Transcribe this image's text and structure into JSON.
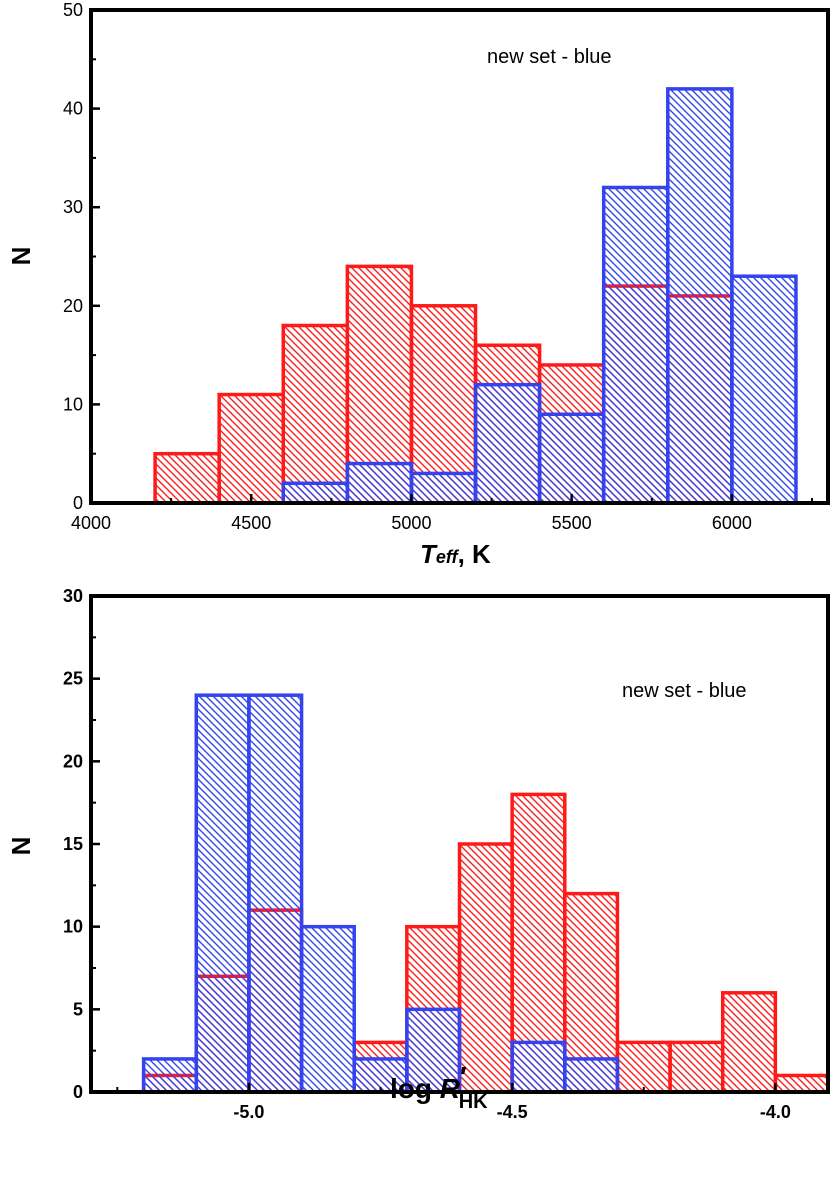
{
  "colors": {
    "red": "#ff1a1a",
    "blue": "#3344ee",
    "axis": "#000000"
  },
  "chart_data": [
    {
      "type": "bar",
      "subtype": "overlapping-histogram",
      "annotation": "new set - blue",
      "xlabel": {
        "main": "T",
        "sub": "eff",
        "unit": ", K"
      },
      "ylabel": "N",
      "xlim": [
        4000,
        6300
      ],
      "ylim": [
        0,
        50
      ],
      "xticks": [
        4000,
        4500,
        5000,
        5500,
        6000
      ],
      "yticks": [
        0,
        10,
        20,
        30,
        40,
        50
      ],
      "grid": false,
      "series": [
        {
          "color": "red",
          "bins": [
            {
              "x0": 4200,
              "x1": 4400,
              "n": 5
            },
            {
              "x0": 4400,
              "x1": 4600,
              "n": 11
            },
            {
              "x0": 4600,
              "x1": 4800,
              "n": 18
            },
            {
              "x0": 4800,
              "x1": 5000,
              "n": 24
            },
            {
              "x0": 5000,
              "x1": 5200,
              "n": 20
            },
            {
              "x0": 5200,
              "x1": 5400,
              "n": 16
            },
            {
              "x0": 5400,
              "x1": 5600,
              "n": 14
            },
            {
              "x0": 5600,
              "x1": 5800,
              "n": 22
            },
            {
              "x0": 5800,
              "x1": 6000,
              "n": 21
            }
          ]
        },
        {
          "color": "blue",
          "bins": [
            {
              "x0": 4600,
              "x1": 4800,
              "n": 2
            },
            {
              "x0": 4800,
              "x1": 5000,
              "n": 4
            },
            {
              "x0": 5000,
              "x1": 5200,
              "n": 3
            },
            {
              "x0": 5200,
              "x1": 5400,
              "n": 12
            },
            {
              "x0": 5400,
              "x1": 5600,
              "n": 9
            },
            {
              "x0": 5600,
              "x1": 5800,
              "n": 32
            },
            {
              "x0": 5800,
              "x1": 6000,
              "n": 42
            },
            {
              "x0": 6000,
              "x1": 6200,
              "n": 23
            }
          ]
        }
      ]
    },
    {
      "type": "bar",
      "subtype": "overlapping-histogram",
      "annotation": "new set - blue",
      "xlabel": {
        "main": "log R",
        "sup": "′",
        "sub": "HK"
      },
      "ylabel": "N",
      "xlim": [
        -5.3,
        -3.9
      ],
      "ylim": [
        0,
        30
      ],
      "xticks": [
        "-5.0",
        "-4.5",
        "-4.0"
      ],
      "yticks": [
        0,
        5,
        10,
        15,
        20,
        25,
        30
      ],
      "grid": false,
      "series": [
        {
          "color": "red",
          "bins": [
            {
              "x0": -5.2,
              "x1": -5.1,
              "n": 1
            },
            {
              "x0": -5.1,
              "x1": -5.0,
              "n": 7
            },
            {
              "x0": -5.0,
              "x1": -4.9,
              "n": 11
            },
            {
              "x0": -4.8,
              "x1": -4.7,
              "n": 3
            },
            {
              "x0": -4.7,
              "x1": -4.6,
              "n": 10
            },
            {
              "x0": -4.6,
              "x1": -4.5,
              "n": 15
            },
            {
              "x0": -4.5,
              "x1": -4.4,
              "n": 18
            },
            {
              "x0": -4.4,
              "x1": -4.3,
              "n": 12
            },
            {
              "x0": -4.3,
              "x1": -4.2,
              "n": 3
            },
            {
              "x0": -4.2,
              "x1": -4.1,
              "n": 3
            },
            {
              "x0": -4.1,
              "x1": -4.0,
              "n": 6
            },
            {
              "x0": -4.0,
              "x1": -3.9,
              "n": 1
            }
          ]
        },
        {
          "color": "blue",
          "bins": [
            {
              "x0": -5.2,
              "x1": -5.1,
              "n": 2
            },
            {
              "x0": -5.1,
              "x1": -5.0,
              "n": 24
            },
            {
              "x0": -5.0,
              "x1": -4.9,
              "n": 24
            },
            {
              "x0": -4.9,
              "x1": -4.8,
              "n": 10
            },
            {
              "x0": -4.8,
              "x1": -4.7,
              "n": 2
            },
            {
              "x0": -4.7,
              "x1": -4.6,
              "n": 5
            },
            {
              "x0": -4.5,
              "x1": -4.4,
              "n": 3
            },
            {
              "x0": -4.4,
              "x1": -4.3,
              "n": 2
            }
          ]
        }
      ]
    }
  ]
}
